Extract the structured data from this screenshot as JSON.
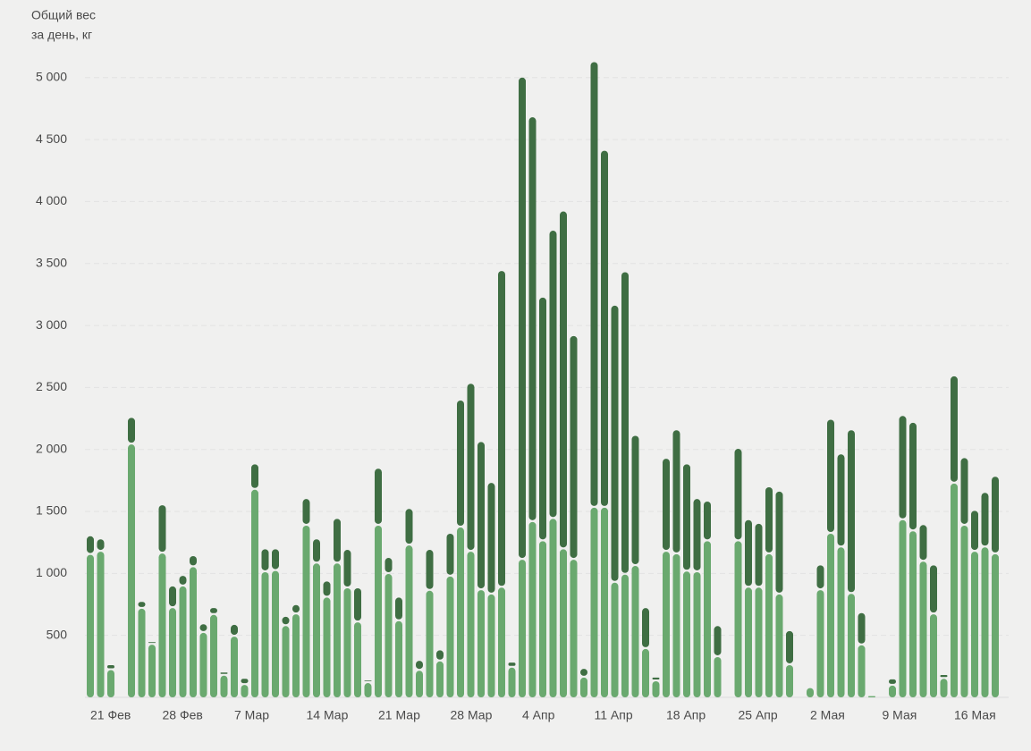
{
  "chart_data": {
    "type": "stacked_bar",
    "ylabel": [
      "Общий вес",
      "за день, кг"
    ],
    "categories": [
      "21 Фев",
      null,
      null,
      null,
      null,
      null,
      null,
      "28 Фев",
      null,
      null,
      null,
      null,
      null,
      null,
      "7 Мар",
      null,
      null,
      null,
      null,
      null,
      null,
      "14 Мар",
      null,
      null,
      null,
      null,
      null,
      null,
      "21 Мар",
      null,
      null,
      null,
      null,
      null,
      null,
      "28 Мар",
      null,
      null,
      null,
      null,
      null,
      null,
      "4 Апр",
      null,
      null,
      null,
      null,
      null,
      null,
      "11 Апр",
      null,
      null,
      null,
      null,
      null,
      null,
      "18 Апр",
      null,
      null,
      null,
      null,
      null,
      null,
      "25 Апр",
      null,
      null,
      null,
      null,
      null,
      null,
      "2 Мая",
      null,
      null,
      null,
      null,
      null,
      null,
      "9 Мая",
      null,
      null,
      null,
      null,
      null,
      null,
      "16 Мая",
      null,
      null,
      null,
      null
    ],
    "series": [
      {
        "color": "#6aa96f",
        "values": [
          1150,
          1175,
          220,
          0,
          2040,
          715,
          425,
          1160,
          720,
          895,
          1050,
          520,
          665,
          175,
          490,
          100,
          1675,
          1010,
          1020,
          575,
          670,
          1385,
          1080,
          805,
          1080,
          880,
          605,
          115,
          1385,
          995,
          615,
          1225,
          215,
          860,
          290,
          975,
          1370,
          1175,
          865,
          830,
          885,
          240,
          1110,
          1415,
          1260,
          1440,
          1195,
          1110,
          160,
          1530,
          1530,
          925,
          990,
          1060,
          390,
          130,
          1175,
          1155,
          1015,
          1010,
          1260,
          325,
          0,
          1260,
          885,
          885,
          1155,
          830,
          260,
          0,
          75,
          865,
          1320,
          1210,
          835,
          420,
          10,
          0,
          95,
          1430,
          1340,
          1095,
          670,
          150,
          1725,
          1385,
          1175,
          1210,
          1155
        ]
      },
      {
        "color": "#3f6e43",
        "values": [
          150,
          100,
          40,
          0,
          215,
          55,
          20,
          390,
          175,
          85,
          90,
          70,
          55,
          25,
          95,
          50,
          205,
          185,
          175,
          75,
          75,
          215,
          195,
          130,
          360,
          310,
          275,
          20,
          460,
          130,
          190,
          295,
          80,
          330,
          90,
          345,
          1025,
          1355,
          1195,
          900,
          2555,
          40,
          3890,
          3265,
          1965,
          2325,
          2725,
          1805,
          70,
          3595,
          2880,
          2235,
          2440,
          1050,
          330,
          30,
          750,
          1000,
          865,
          590,
          320,
          250,
          0,
          745,
          545,
          515,
          540,
          830,
          275,
          0,
          10,
          200,
          920,
          750,
          1320,
          260,
          0,
          0,
          50,
          840,
          875,
          295,
          395,
          30,
          865,
          545,
          330,
          440,
          625
        ]
      }
    ],
    "ylim": [
      0,
      5150
    ],
    "yticks": [
      {
        "value": 500,
        "label": "500"
      },
      {
        "value": 1000,
        "label": "1 000"
      },
      {
        "value": 1500,
        "label": "1 500"
      },
      {
        "value": 2000,
        "label": "2 000"
      },
      {
        "value": 2500,
        "label": "2 500"
      },
      {
        "value": 3000,
        "label": "3 000"
      },
      {
        "value": 3500,
        "label": "3 500"
      },
      {
        "value": 4000,
        "label": "4 000"
      },
      {
        "value": 4500,
        "label": "4 500"
      },
      {
        "value": 5000,
        "label": "5 000"
      }
    ],
    "grid": true
  }
}
